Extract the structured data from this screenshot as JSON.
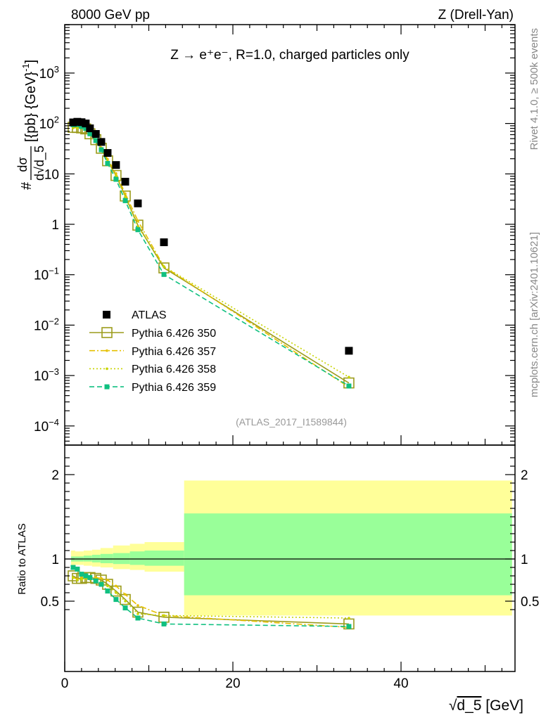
{
  "chart_data": [
    {
      "type": "scatter",
      "panel": "main",
      "header_left": "8000 GeV pp",
      "header_right": "Z (Drell-Yan)",
      "title": "Z → e⁺e⁻, R=1.0, charged particles only",
      "ylabel": "# dσ / d√d_5 [{pb} {GeV}⁻¹]",
      "ylabel_parts": {
        "hash": "#",
        "num": "dσ",
        "den": "d√d_5",
        "unit": "[{pb} {GeV}",
        "exp": "-1",
        "close": "]"
      },
      "yscale": "log",
      "ylim": [
        4e-05,
        10000
      ],
      "xlim": [
        0,
        53.5
      ],
      "ytick_labels": [
        {
          "value": 1000,
          "base": "10",
          "exp": "3"
        },
        {
          "value": 100,
          "base": "10",
          "exp": "2"
        },
        {
          "value": 10,
          "base": "10",
          "exp": ""
        },
        {
          "value": 1,
          "base": "1",
          "exp": ""
        },
        {
          "value": 0.1,
          "base": "10",
          "exp": "−1"
        },
        {
          "value": 0.01,
          "base": "10",
          "exp": "−2"
        },
        {
          "value": 0.001,
          "base": "10",
          "exp": "−3"
        },
        {
          "value": 0.0001,
          "base": "10",
          "exp": "−4"
        }
      ],
      "analysis_id": "(ATLAS_2017_I1589844)",
      "side_label_top": "Rivet 4.1.0, ≥ 500k events",
      "side_label_bottom": "mcplots.cern.ch [arXiv:2401.10621]",
      "x": [
        1.0,
        1.5,
        2.0,
        2.5,
        3.0,
        3.7,
        4.35,
        5.1,
        6.1,
        7.2,
        8.7,
        11.8,
        33.8
      ],
      "data": {
        "name": "ATLAS",
        "values": [
          105,
          108,
          106,
          100,
          80,
          62,
          43,
          26,
          15,
          7.0,
          2.6,
          0.44,
          0.0031
        ]
      },
      "legend_position": "bottom-left",
      "series": [
        {
          "name": "Pythia 6.426 350",
          "color": "#9c9c1c",
          "style": "solid",
          "marker": "open-square",
          "ratio_to_data": [
            0.8,
            0.77,
            0.77,
            0.78,
            0.78,
            0.77,
            0.75,
            0.7,
            0.62,
            0.52,
            0.37,
            0.31,
            0.23
          ]
        },
        {
          "name": "Pythia 6.426 357",
          "color": "#e6c000",
          "style": "dashdot",
          "marker": "small-dot",
          "ratio_to_data": [
            0.78,
            0.76,
            0.78,
            0.8,
            0.78,
            0.78,
            0.77,
            0.75,
            0.68,
            0.58,
            0.45,
            0.33,
            0.19
          ]
        },
        {
          "name": "Pythia 6.426 358",
          "color": "#c8d400",
          "style": "dotted",
          "marker": "small-dot",
          "ratio_to_data": [
            0.78,
            0.75,
            0.76,
            0.77,
            0.76,
            0.75,
            0.72,
            0.68,
            0.6,
            0.5,
            0.35,
            0.33,
            0.3
          ]
        },
        {
          "name": "Pythia 6.426 359",
          "color": "#10c080",
          "style": "dashed",
          "marker": "filled-square",
          "ratio_to_data": [
            0.9,
            0.88,
            0.82,
            0.8,
            0.78,
            0.74,
            0.7,
            0.62,
            0.52,
            0.42,
            0.3,
            0.23,
            0.2
          ]
        }
      ]
    },
    {
      "type": "area",
      "panel": "ratio",
      "ylabel": "Ratio to ATLAS",
      "xlabel": "√d_5 [GeV]",
      "xlabel_parts": {
        "root": "√",
        "var": "d_5",
        "unit": " [GeV]"
      },
      "ylim": [
        0.33,
        2.35
      ],
      "xlim": [
        0,
        53.5
      ],
      "xtick_labels": [
        "0",
        "20",
        "40"
      ],
      "xtick_values": [
        0,
        20,
        40
      ],
      "ytick_labels": [
        "2",
        "1",
        "0.5"
      ],
      "ytick_values": [
        2,
        1,
        0.5
      ],
      "band_colors": {
        "outer": "#ffff99",
        "inner": "#99ff99"
      },
      "bins": [
        {
          "lo": 0.75,
          "hi": 1.25,
          "outer": [
            0.93,
            1.1
          ],
          "inner": [
            0.97,
            1.03
          ]
        },
        {
          "lo": 1.25,
          "hi": 2.25,
          "outer": [
            0.93,
            1.09
          ],
          "inner": [
            0.97,
            1.03
          ]
        },
        {
          "lo": 2.25,
          "hi": 3.25,
          "outer": [
            0.92,
            1.1
          ],
          "inner": [
            0.97,
            1.04
          ]
        },
        {
          "lo": 3.25,
          "hi": 4.25,
          "outer": [
            0.91,
            1.11
          ],
          "inner": [
            0.96,
            1.05
          ]
        },
        {
          "lo": 4.25,
          "hi": 5.75,
          "outer": [
            0.9,
            1.13
          ],
          "inner": [
            0.95,
            1.06
          ]
        },
        {
          "lo": 5.75,
          "hi": 7.75,
          "outer": [
            0.88,
            1.16
          ],
          "inner": [
            0.94,
            1.07
          ]
        },
        {
          "lo": 7.75,
          "hi": 9.5,
          "outer": [
            0.87,
            1.18
          ],
          "inner": [
            0.93,
            1.09
          ]
        },
        {
          "lo": 9.5,
          "hi": 14.2,
          "outer": [
            0.85,
            1.2
          ],
          "inner": [
            0.92,
            1.1
          ]
        },
        {
          "lo": 14.2,
          "hi": 53.2,
          "outer": [
            0.33,
            1.93
          ],
          "inner": [
            0.57,
            1.54
          ]
        }
      ]
    }
  ]
}
